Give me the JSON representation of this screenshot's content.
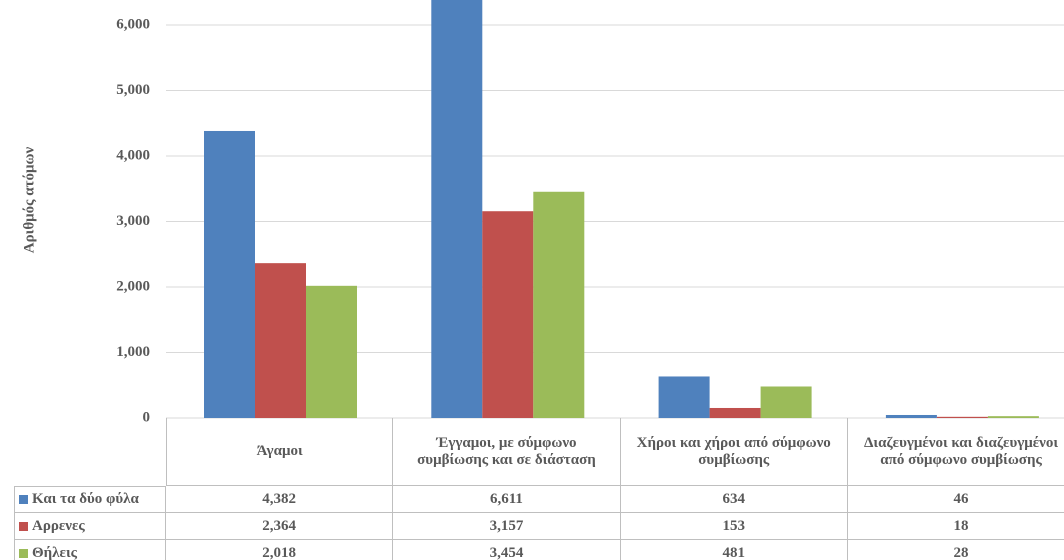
{
  "chart_data": {
    "type": "bar",
    "y_axis_label": "Αριθμός ατόμων",
    "categories": [
      "Άγαμοι",
      "Έγγαμοι, με σύμφωνο συμβίωσης και σε διάσταση",
      "Χήροι  και χήροι από σύμφωνο συμβίωσης",
      "Διαζευγμένοι και διαζευγμένοι από σύμφωνο συμβίωσης"
    ],
    "series": [
      {
        "name": "Και τα δύο φύλα",
        "color": "#4f81bd",
        "values": [
          4382,
          6611,
          634,
          46
        ],
        "value_labels": [
          "4,382",
          "6,611",
          "634",
          "46"
        ]
      },
      {
        "name": "Αρρενες",
        "color": "#c0504d",
        "values": [
          2364,
          3157,
          153,
          18
        ],
        "value_labels": [
          "2,364",
          "3,157",
          "153",
          "18"
        ]
      },
      {
        "name": "Θήλεις",
        "color": "#9bbb59",
        "values": [
          2018,
          3454,
          481,
          28
        ],
        "value_labels": [
          "2,018",
          "3,454",
          "481",
          "28"
        ]
      }
    ],
    "ylim": [
      0,
      6000
    ],
    "yticks": [
      0,
      {
        "value": 1000,
        "label": "1,000"
      },
      {
        "value": 2000,
        "label": "2,000"
      },
      {
        "value": 3000,
        "label": "3,000"
      },
      {
        "value": 4000,
        "label": "4,000"
      },
      {
        "value": 5000,
        "label": "5,000"
      },
      {
        "value": 6000,
        "label": "6,000"
      }
    ],
    "grid": true
  }
}
